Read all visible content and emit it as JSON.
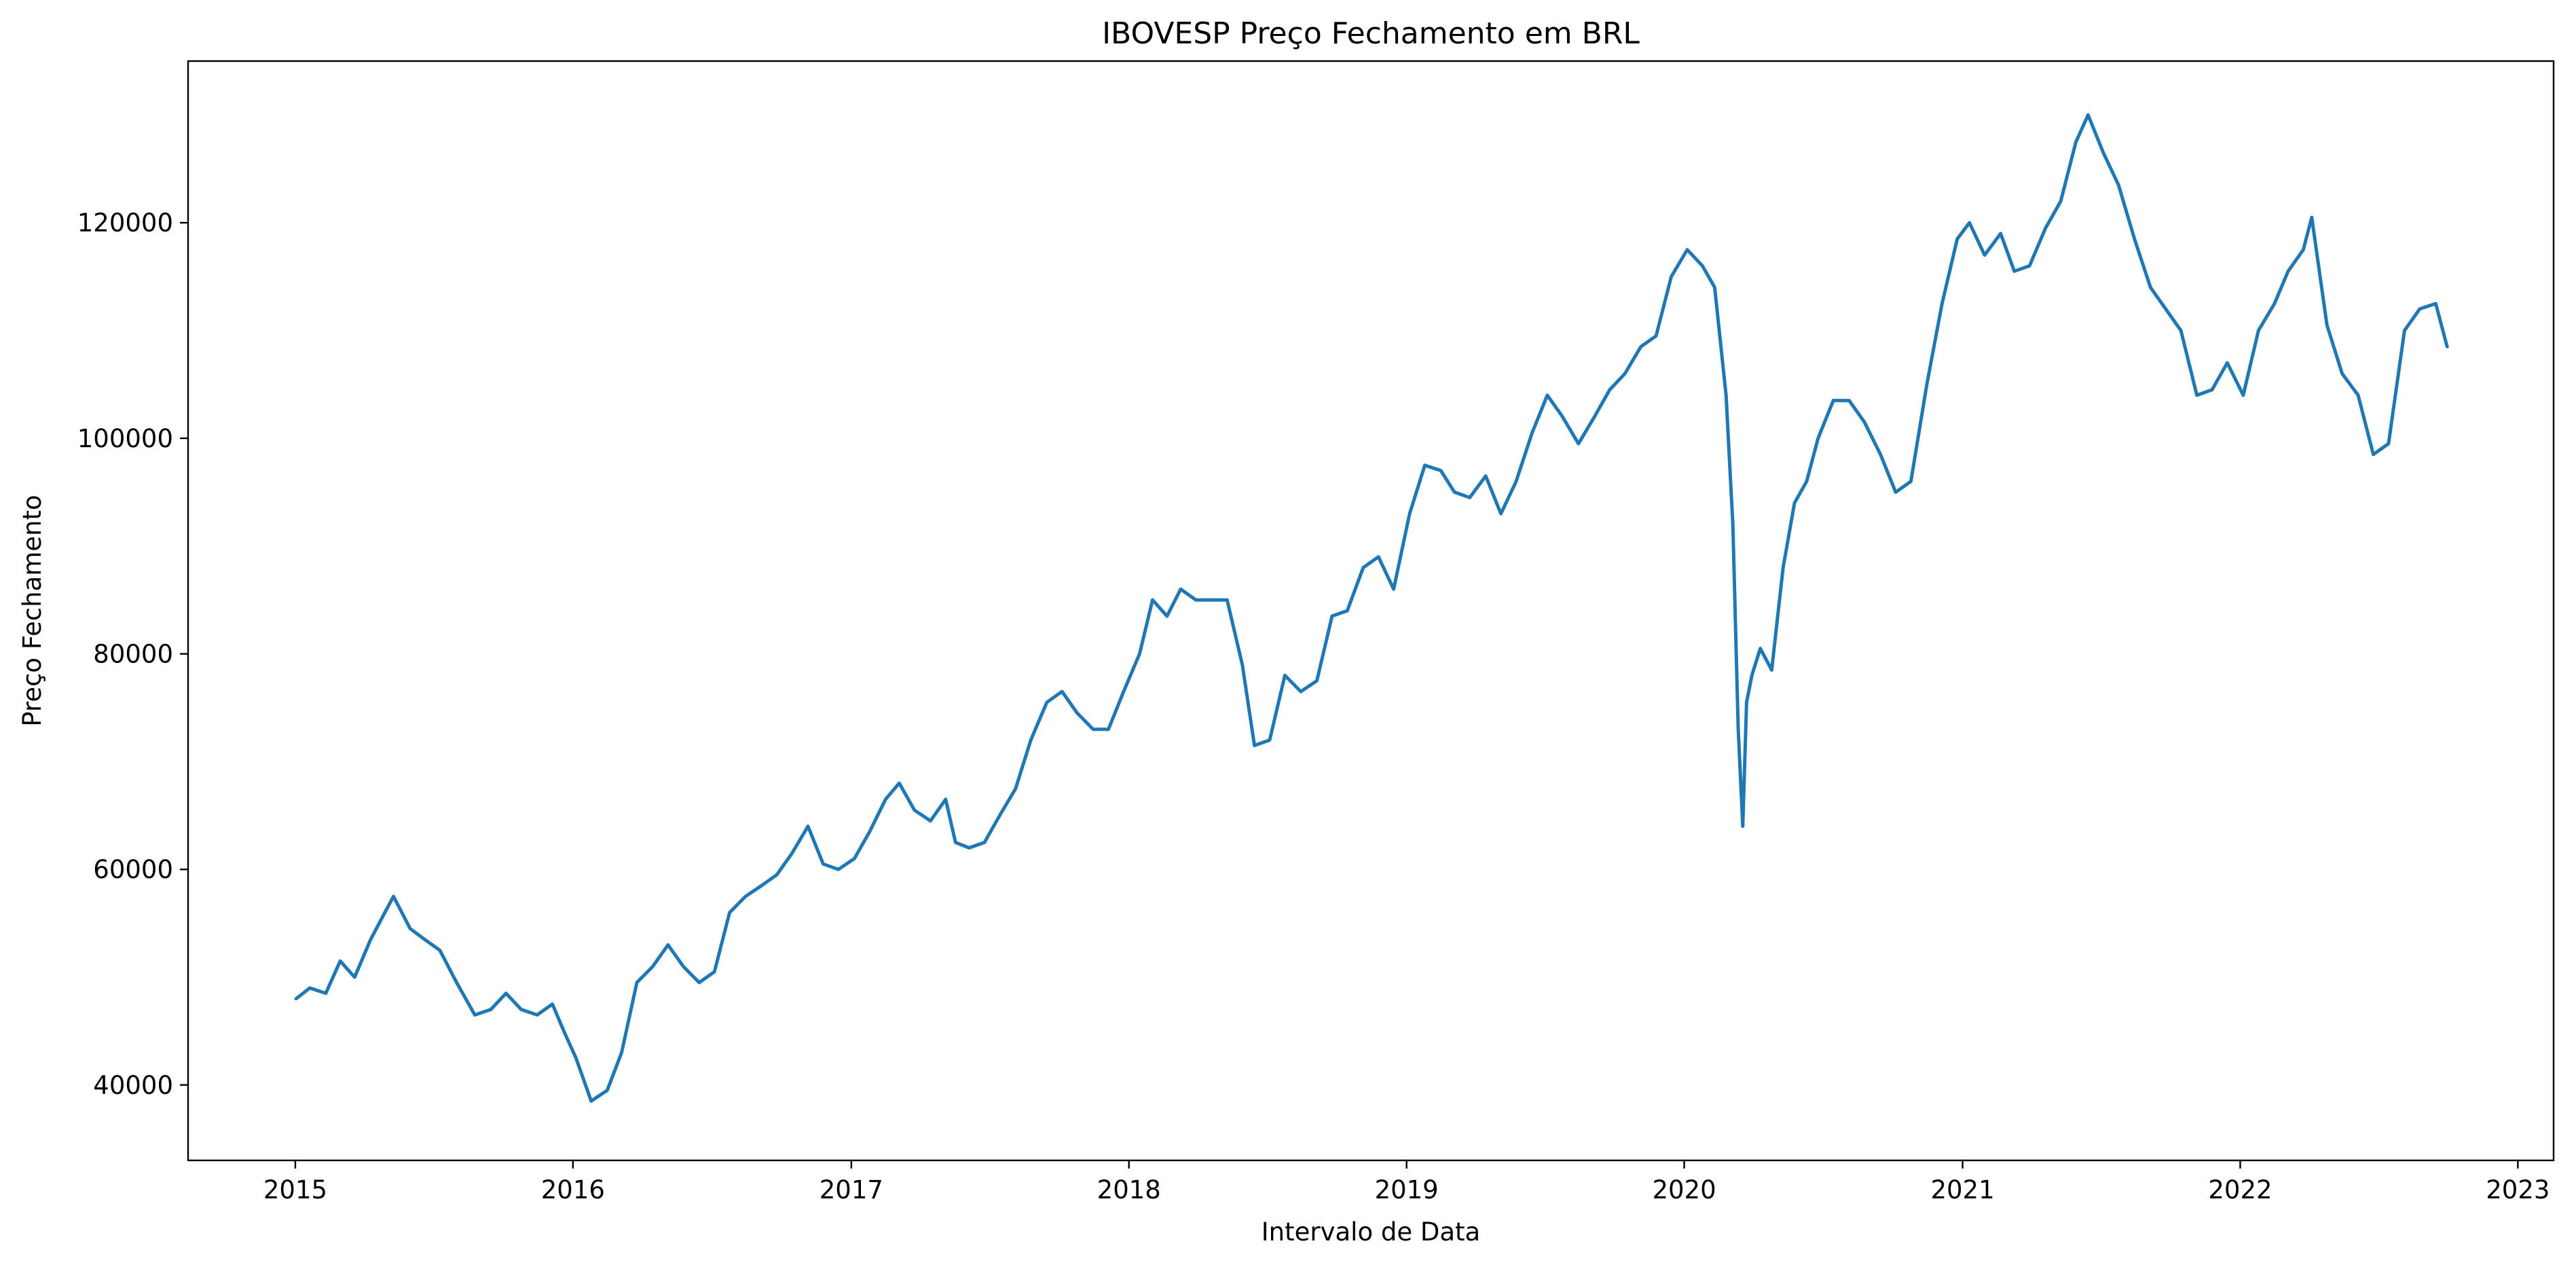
{
  "chart_data": {
    "type": "line",
    "title": "IBOVESP Preço Fechamento em BRL",
    "xlabel": "Intervalo de Data",
    "ylabel": "Preço Fechamento",
    "xlim": [
      "2014-08-13",
      "2023-02-17"
    ],
    "ylim": [
      33000,
      135000
    ],
    "x_ticks": [
      "2015",
      "2016",
      "2017",
      "2018",
      "2019",
      "2020",
      "2021",
      "2022",
      "2023"
    ],
    "y_ticks": [
      "40000",
      "60000",
      "80000",
      "100000",
      "120000"
    ],
    "grid": false,
    "legend": "none",
    "colors": {
      "line": "#1f77b4",
      "axes": "#000000",
      "background": "#ffffff"
    },
    "series": [
      {
        "x": [
          "2015-01-02",
          "2015-01-20",
          "2015-02-10",
          "2015-03-01",
          "2015-03-20",
          "2015-04-10",
          "2015-04-25",
          "2015-05-10",
          "2015-06-01",
          "2015-06-20",
          "2015-07-10",
          "2015-08-01",
          "2015-08-25",
          "2015-09-15",
          "2015-10-05",
          "2015-10-25",
          "2015-11-15",
          "2015-12-05",
          "2015-12-20",
          "2016-01-05",
          "2016-01-25",
          "2016-02-15",
          "2016-03-05",
          "2016-03-25",
          "2016-04-15",
          "2016-05-05",
          "2016-05-25",
          "2016-06-15",
          "2016-07-05",
          "2016-07-25",
          "2016-08-15",
          "2016-09-05",
          "2016-09-25",
          "2016-10-15",
          "2016-11-05",
          "2016-11-25",
          "2016-12-15",
          "2017-01-05",
          "2017-01-25",
          "2017-02-15",
          "2017-03-05",
          "2017-03-25",
          "2017-04-15",
          "2017-05-05",
          "2017-05-18",
          "2017-06-05",
          "2017-06-25",
          "2017-07-15",
          "2017-08-05",
          "2017-08-25",
          "2017-09-15",
          "2017-10-05",
          "2017-10-25",
          "2017-11-15",
          "2017-12-05",
          "2017-12-25",
          "2018-01-15",
          "2018-02-01",
          "2018-02-20",
          "2018-03-10",
          "2018-03-30",
          "2018-04-20",
          "2018-05-10",
          "2018-05-30",
          "2018-06-15",
          "2018-07-05",
          "2018-07-25",
          "2018-08-15",
          "2018-09-05",
          "2018-09-25",
          "2018-10-15",
          "2018-11-05",
          "2018-11-25",
          "2018-12-15",
          "2019-01-05",
          "2019-01-25",
          "2019-02-15",
          "2019-03-05",
          "2019-03-25",
          "2019-04-15",
          "2019-05-05",
          "2019-05-25",
          "2019-06-15",
          "2019-07-05",
          "2019-07-25",
          "2019-08-15",
          "2019-09-05",
          "2019-09-25",
          "2019-10-15",
          "2019-11-05",
          "2019-11-25",
          "2019-12-15",
          "2020-01-05",
          "2020-01-25",
          "2020-02-10",
          "2020-02-25",
          "2020-03-05",
          "2020-03-12",
          "2020-03-18",
          "2020-03-23",
          "2020-03-30",
          "2020-04-10",
          "2020-04-25",
          "2020-05-10",
          "2020-05-25",
          "2020-06-10",
          "2020-06-25",
          "2020-07-15",
          "2020-08-05",
          "2020-08-25",
          "2020-09-15",
          "2020-10-05",
          "2020-10-25",
          "2020-11-15",
          "2020-12-05",
          "2020-12-25",
          "2021-01-10",
          "2021-01-30",
          "2021-02-20",
          "2021-03-10",
          "2021-03-30",
          "2021-04-20",
          "2021-05-10",
          "2021-05-30",
          "2021-06-15",
          "2021-07-05",
          "2021-07-25",
          "2021-08-15",
          "2021-09-05",
          "2021-09-25",
          "2021-10-15",
          "2021-11-05",
          "2021-11-25",
          "2021-12-15",
          "2022-01-05",
          "2022-01-25",
          "2022-02-15",
          "2022-03-05",
          "2022-03-25",
          "2022-04-05",
          "2022-04-25",
          "2022-05-15",
          "2022-06-05",
          "2022-06-25",
          "2022-07-15",
          "2022-08-05",
          "2022-08-25",
          "2022-09-15",
          "2022-09-30"
        ],
        "y": [
          48000,
          49000,
          48500,
          51500,
          50000,
          53500,
          55500,
          57500,
          54500,
          53500,
          52500,
          49500,
          46500,
          47000,
          48500,
          47000,
          46500,
          47500,
          45000,
          42500,
          38500,
          39500,
          43000,
          49500,
          51000,
          53000,
          51000,
          49500,
          50500,
          56000,
          57500,
          58500,
          59500,
          61500,
          64000,
          60500,
          60000,
          61000,
          63500,
          66500,
          68000,
          65500,
          64500,
          66500,
          62500,
          62000,
          62500,
          65000,
          67500,
          72000,
          75500,
          76500,
          74500,
          73000,
          73000,
          76500,
          80000,
          85000,
          83500,
          86000,
          85000,
          85000,
          85000,
          79000,
          71500,
          72000,
          78000,
          76500,
          77500,
          83500,
          84000,
          88000,
          89000,
          86000,
          93000,
          97500,
          97000,
          95000,
          94500,
          96500,
          93000,
          96000,
          100500,
          104000,
          102000,
          99500,
          102000,
          104500,
          106000,
          108500,
          109500,
          115000,
          117500,
          116000,
          114000,
          104000,
          92000,
          73000,
          64000,
          75500,
          78000,
          80500,
          78500,
          88000,
          94000,
          96000,
          100000,
          103500,
          103500,
          101500,
          98500,
          95000,
          96000,
          105000,
          112500,
          118500,
          120000,
          117000,
          119000,
          115500,
          116000,
          119500,
          122000,
          127500,
          130000,
          126500,
          123500,
          118500,
          114000,
          112000,
          110000,
          104000,
          104500,
          107000,
          104000,
          110000,
          112500,
          115500,
          117500,
          120500,
          110500,
          106000,
          104000,
          98500,
          99500,
          110000,
          112000,
          112500,
          108500
        ]
      }
    ]
  }
}
